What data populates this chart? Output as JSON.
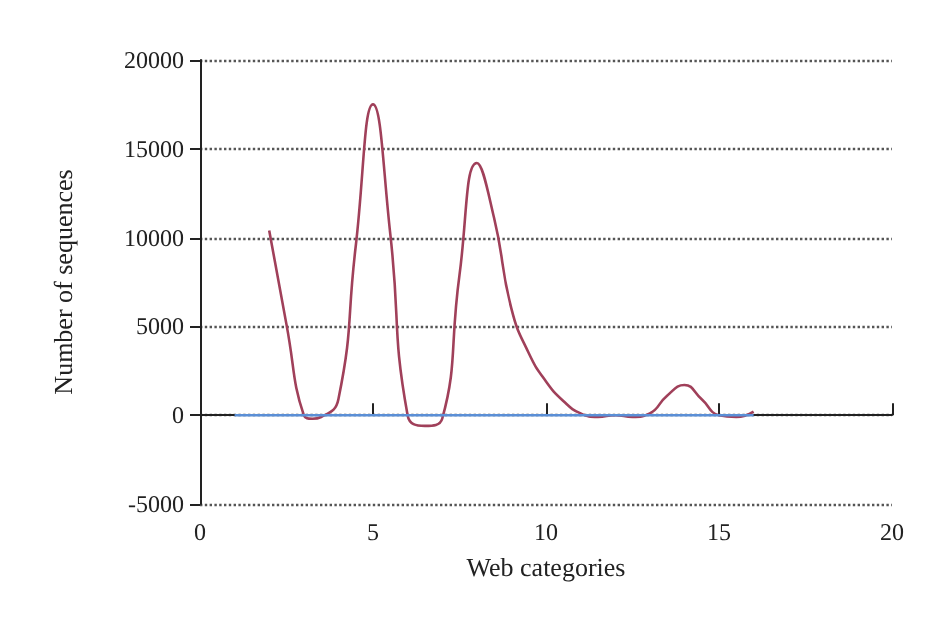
{
  "chart_data": {
    "type": "line",
    "xlabel": "Web categories",
    "ylabel": "Number of sequences",
    "xlim": [
      0,
      20
    ],
    "xticks": [
      0,
      5,
      10,
      15,
      20
    ],
    "ylim": [
      -5000,
      20000
    ],
    "yticks": [
      -5000,
      0,
      5000,
      10000,
      15000,
      20000
    ],
    "grid": "y",
    "marker": "none",
    "line_style": "solid",
    "series": [
      {
        "color": "#a0405a",
        "x": [
          2,
          2.5,
          3,
          3.25,
          3.5,
          4,
          4.5,
          5,
          5.5,
          6,
          6.5,
          7,
          7.5,
          8,
          8.5,
          9,
          9.5,
          10,
          10.5,
          11,
          11.5,
          12,
          12.5,
          13,
          13.5,
          14,
          14.5,
          15,
          15.5,
          16
        ],
        "values": [
          10400,
          5100,
          0,
          -200,
          -100,
          900,
          9500,
          17500,
          10200,
          0,
          -600,
          -200,
          7900,
          14200,
          11100,
          6000,
          3500,
          1900,
          800,
          100,
          -100,
          0,
          -100,
          100,
          1100,
          1700,
          900,
          0,
          -100,
          200
        ]
      },
      {
        "color": "#5b8fd6",
        "x": [
          1,
          16
        ],
        "values": [
          0,
          0
        ]
      }
    ]
  }
}
